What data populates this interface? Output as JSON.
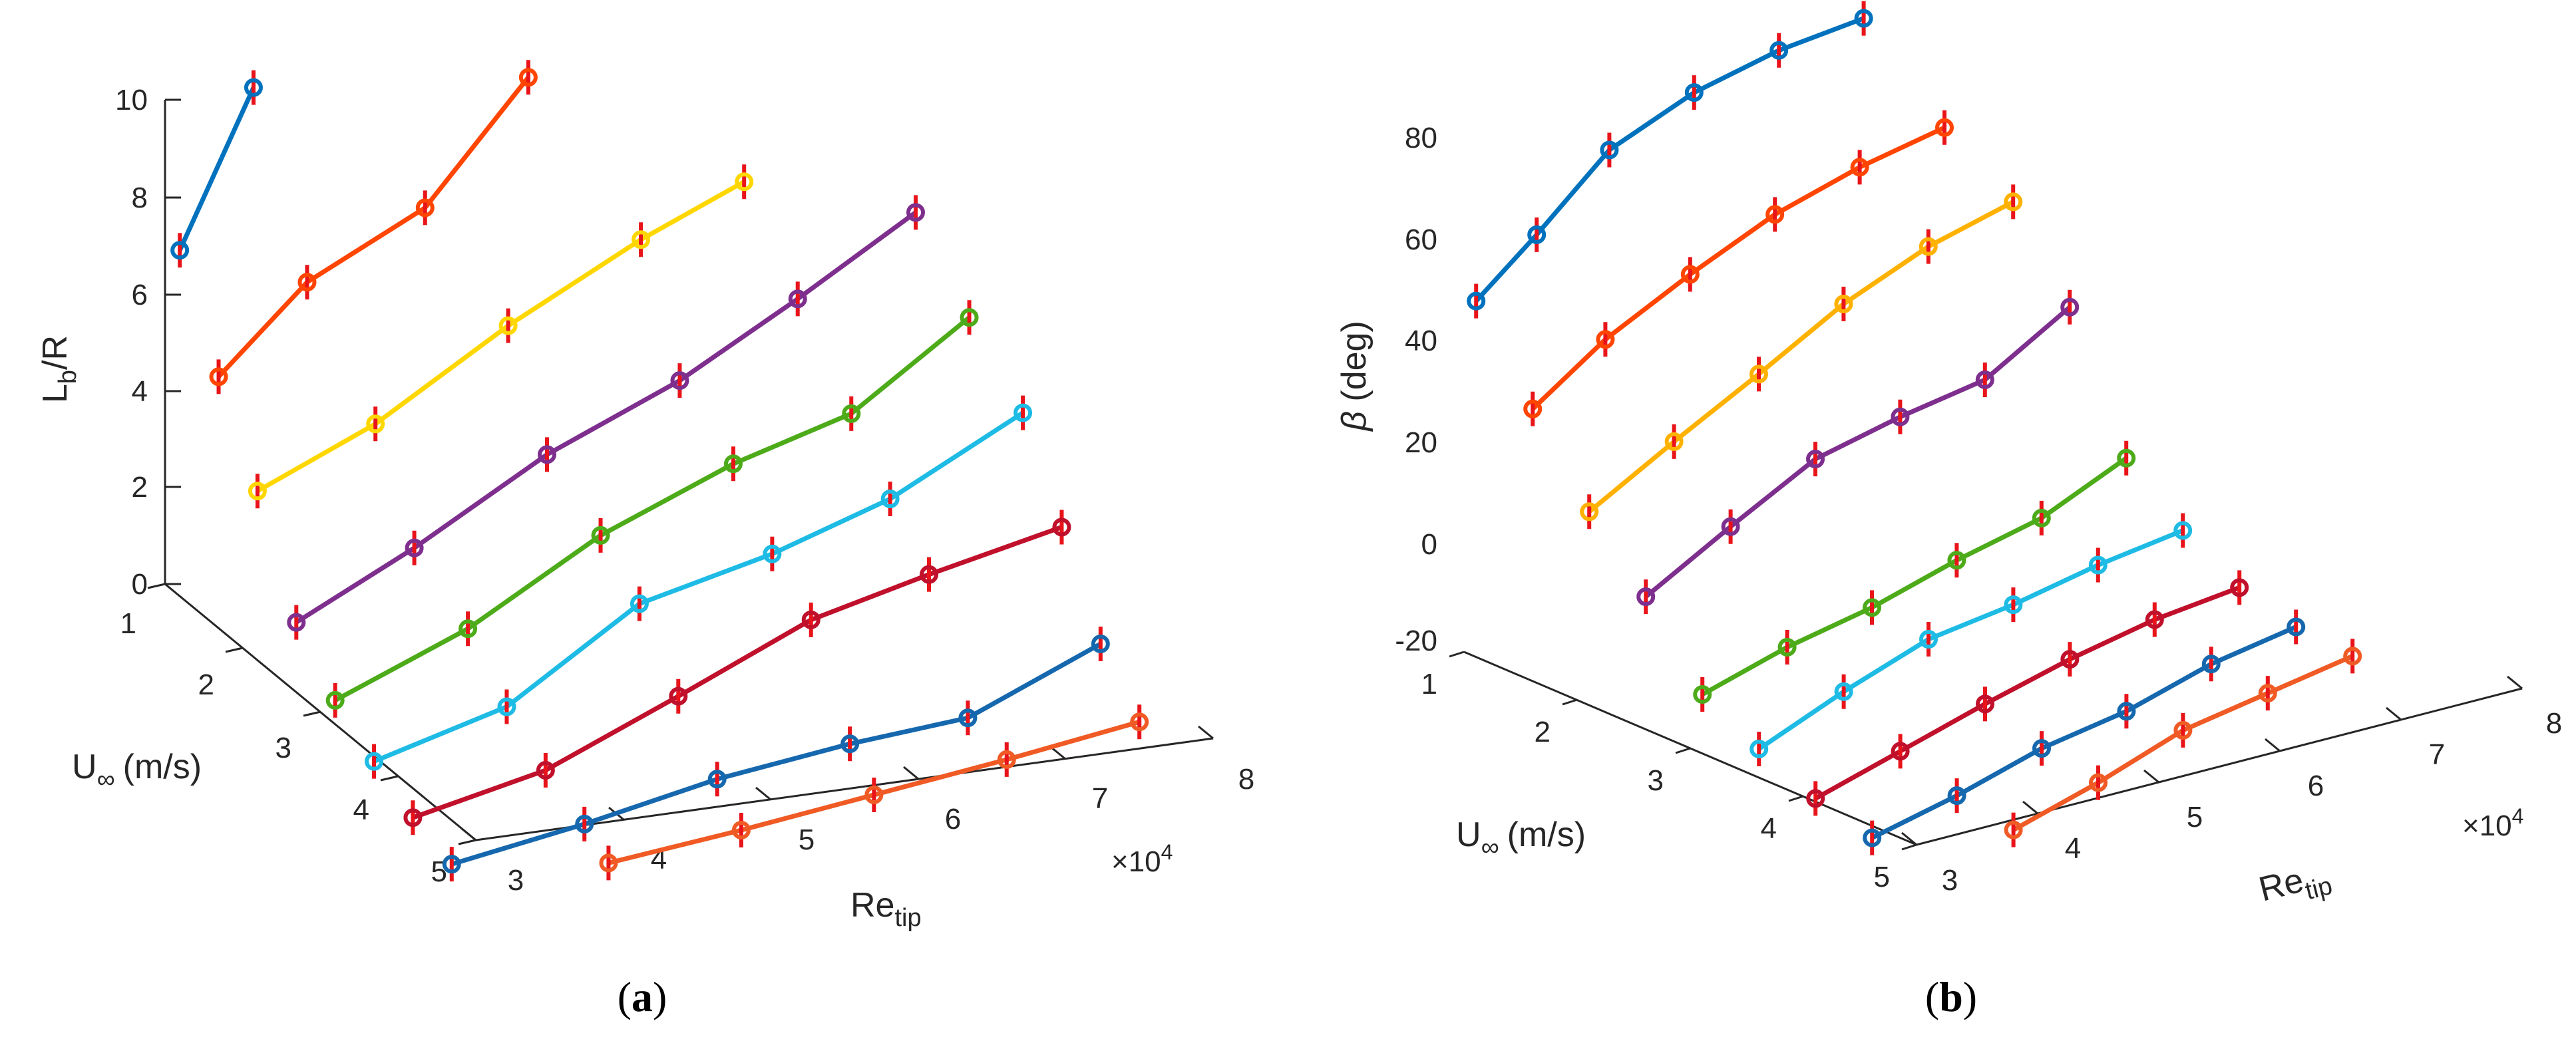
{
  "chart_data": [
    {
      "id": "a",
      "type": "line-3d",
      "caption_letter": "a",
      "xlabel_main": "Re",
      "xlabel_sub": "tip",
      "ylabel_main": "U",
      "ylabel_sub": "∞",
      "ylabel_units": "(m/s)",
      "zlabel_main": "L",
      "zlabel_sub": "b",
      "zlabel_rest": "/R",
      "x_multiplier_text": "×10",
      "x_multiplier_exp": "4",
      "x_ticks": [
        "3",
        "4",
        "5",
        "6",
        "7",
        "8"
      ],
      "y_ticks": [
        "1",
        "2",
        "3",
        "4",
        "5"
      ],
      "z_ticks": [
        "0",
        "2",
        "4",
        "6",
        "8",
        "10"
      ],
      "xlim": [
        3,
        8
      ],
      "ylim": [
        1,
        5
      ],
      "zlim": [
        0,
        10
      ],
      "series": [
        {
          "color": "#0072BD",
          "points": [
            [
              3.1,
              1.0,
              6.85
            ],
            [
              3.6,
              1.0,
              10.0
            ]
          ]
        },
        {
          "color": "#FF4500",
          "points": [
            [
              3.1,
              1.5,
              4.9
            ],
            [
              3.7,
              1.5,
              6.6
            ],
            [
              4.5,
              1.5,
              7.8
            ],
            [
              5.2,
              1.5,
              10.2
            ]
          ]
        },
        {
          "color": "#FFD700",
          "points": [
            [
              3.1,
              2.0,
              3.2
            ],
            [
              3.9,
              2.0,
              4.25
            ],
            [
              4.8,
              2.0,
              5.9
            ],
            [
              5.7,
              2.0,
              7.3
            ],
            [
              6.4,
              2.0,
              8.2
            ]
          ]
        },
        {
          "color": "#7E2F8E",
          "points": [
            [
              3.1,
              2.5,
              1.15
            ],
            [
              3.9,
              2.5,
              2.35
            ],
            [
              4.8,
              2.5,
              3.9
            ],
            [
              5.7,
              2.5,
              5.05
            ],
            [
              6.5,
              2.5,
              6.4
            ],
            [
              7.3,
              2.5,
              7.85
            ]
          ]
        },
        {
          "color": "#4DAB1A",
          "points": [
            [
              3.1,
              3.0,
              0.2
            ],
            [
              4.0,
              3.0,
              1.3
            ],
            [
              4.9,
              3.0,
              2.85
            ],
            [
              5.8,
              3.0,
              3.95
            ],
            [
              6.6,
              3.0,
              4.65
            ],
            [
              7.4,
              3.0,
              6.3
            ]
          ]
        },
        {
          "color": "#1EBBE5",
          "points": [
            [
              3.1,
              3.5,
              -0.4
            ],
            [
              4.0,
              3.5,
              0.35
            ],
            [
              4.9,
              3.5,
              2.1
            ],
            [
              5.8,
              3.5,
              2.75
            ],
            [
              6.6,
              3.5,
              3.55
            ],
            [
              7.5,
              3.5,
              4.95
            ]
          ]
        },
        {
          "color": "#C0102B",
          "points": [
            [
              3.1,
              4.0,
              -0.9
            ],
            [
              4.0,
              4.0,
              -0.3
            ],
            [
              4.9,
              4.0,
              0.85
            ],
            [
              5.8,
              4.0,
              2.05
            ],
            [
              6.6,
              4.0,
              2.65
            ],
            [
              7.5,
              4.0,
              3.25
            ]
          ]
        },
        {
          "color": "#1668AE",
          "points": [
            [
              3.1,
              4.5,
              -1.2
            ],
            [
              4.0,
              4.5,
              -0.75
            ],
            [
              4.9,
              4.5,
              -0.2
            ],
            [
              5.8,
              4.5,
              0.15
            ],
            [
              6.6,
              4.5,
              0.35
            ],
            [
              7.5,
              4.5,
              1.5
            ]
          ]
        },
        {
          "color": "#F05A24",
          "points": [
            [
              3.9,
              5.0,
              -0.85
            ],
            [
              4.8,
              5.0,
              -0.55
            ],
            [
              5.7,
              5.0,
              -0.2
            ],
            [
              6.6,
              5.0,
              0.15
            ],
            [
              7.5,
              5.0,
              0.55
            ]
          ]
        }
      ]
    },
    {
      "id": "b",
      "type": "line-3d",
      "caption_letter": "b",
      "xlabel_main": "Re",
      "xlabel_sub": "tip",
      "ylabel_main": "U",
      "ylabel_sub": "∞",
      "ylabel_units": "(m/s)",
      "zlabel_main": "β",
      "zlabel_rest": " (deg)",
      "x_multiplier_text": "×10",
      "x_multiplier_exp": "4",
      "x_ticks": [
        "3",
        "4",
        "5",
        "6",
        "7",
        "8"
      ],
      "y_ticks": [
        "1",
        "2",
        "3",
        "4",
        "5"
      ],
      "z_ticks": [
        "-20",
        "0",
        "20",
        "40",
        "60",
        "80"
      ],
      "xlim": [
        3,
        8
      ],
      "ylim": [
        1,
        5
      ],
      "zlim": [
        -20,
        80
      ],
      "series": [
        {
          "color": "#0072BD",
          "points": [
            [
              3.1,
              1.0,
              48.5
            ],
            [
              3.6,
              1.0,
              58.5
            ],
            [
              4.2,
              1.0,
              71.5
            ],
            [
              4.9,
              1.0,
              78.5
            ],
            [
              5.6,
              1.0,
              82.5
            ],
            [
              6.3,
              1.0,
              84.5
            ]
          ]
        },
        {
          "color": "#FF4500",
          "points": [
            [
              3.1,
              1.5,
              32
            ],
            [
              3.7,
              1.5,
              42
            ],
            [
              4.4,
              1.5,
              50.5
            ],
            [
              5.1,
              1.5,
              58
            ],
            [
              5.8,
              1.5,
              63
            ],
            [
              6.5,
              1.5,
              66.5
            ]
          ]
        },
        {
          "color": "#FFB100",
          "points": [
            [
              3.1,
              2.0,
              16.5
            ],
            [
              3.8,
              2.0,
              26
            ],
            [
              4.5,
              2.0,
              35
            ],
            [
              5.2,
              2.0,
              44.5
            ],
            [
              5.9,
              2.0,
              51.5
            ],
            [
              6.6,
              2.0,
              56
            ]
          ]
        },
        {
          "color": "#7E2F8E",
          "points": [
            [
              3.1,
              2.5,
              4.5
            ],
            [
              3.8,
              2.5,
              14
            ],
            [
              4.5,
              2.5,
              23
            ],
            [
              5.2,
              2.5,
              27
            ],
            [
              5.9,
              2.5,
              30
            ],
            [
              6.6,
              2.5,
              40
            ]
          ]
        },
        {
          "color": "#4DAB1A",
          "points": [
            [
              3.1,
              3.0,
              -10
            ],
            [
              3.8,
              3.0,
              -5
            ],
            [
              4.5,
              3.0,
              -1.5
            ],
            [
              5.2,
              3.0,
              3.5
            ],
            [
              5.9,
              3.0,
              7.5
            ],
            [
              6.6,
              3.0,
              15
            ]
          ]
        },
        {
          "color": "#1EBBE5",
          "points": [
            [
              3.1,
              3.5,
              -16
            ],
            [
              3.8,
              3.5,
              -9
            ],
            [
              4.5,
              3.5,
              -3
            ],
            [
              5.2,
              3.5,
              -0.5
            ],
            [
              5.9,
              3.5,
              3
            ],
            [
              6.6,
              3.5,
              5.5
            ]
          ]
        },
        {
          "color": "#C0102B",
          "points": [
            [
              3.1,
              4.0,
              -21
            ],
            [
              3.8,
              4.0,
              -16
            ],
            [
              4.5,
              4.0,
              -11
            ],
            [
              5.2,
              4.0,
              -6.5
            ],
            [
              5.9,
              4.0,
              -3
            ],
            [
              6.6,
              4.0,
              -1
            ]
          ]
        },
        {
          "color": "#1668AE",
          "points": [
            [
              3.1,
              4.5,
              -24
            ],
            [
              3.8,
              4.5,
              -20
            ],
            [
              4.5,
              4.5,
              -15
            ],
            [
              5.2,
              4.5,
              -12
            ],
            [
              5.9,
              4.5,
              -7
            ],
            [
              6.6,
              4.5,
              -4
            ]
          ]
        },
        {
          "color": "#F05A24",
          "points": [
            [
              3.8,
              5.0,
              -22
            ],
            [
              4.5,
              5.0,
              -17
            ],
            [
              5.2,
              5.0,
              -11
            ],
            [
              5.9,
              5.0,
              -8
            ],
            [
              6.6,
              5.0,
              -5
            ]
          ]
        }
      ]
    }
  ]
}
